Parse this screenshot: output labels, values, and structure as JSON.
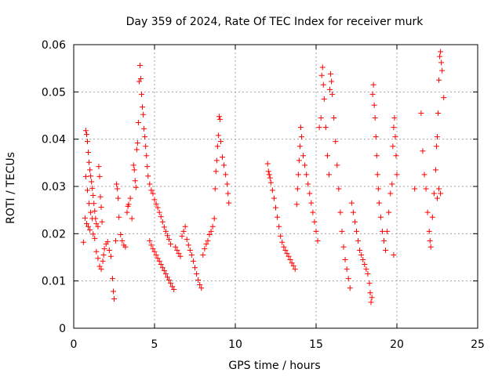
{
  "chart_data": {
    "type": "scatter",
    "title": "Day 359 of 2024, Rate Of TEC Index for receiver murk",
    "xlabel": "GPS time / hours",
    "ylabel": "ROTI / TECUs",
    "xlim": [
      0,
      25
    ],
    "ylim": [
      0,
      0.06
    ],
    "xticks": [
      0,
      5,
      10,
      15,
      20,
      25
    ],
    "yticks": [
      0,
      0.01,
      0.02,
      0.03,
      0.04,
      0.05,
      0.06
    ],
    "xtick_labels": [
      "0",
      "5",
      "10",
      "15",
      "20",
      "25"
    ],
    "ytick_labels": [
      "0",
      "0.01",
      "0.02",
      "0.03",
      "0.04",
      "0.05",
      "0.06"
    ],
    "grid": true,
    "legend": "none",
    "marker": "plus",
    "color": "#ff0000",
    "series": [
      {
        "points": [
          [
            0.6,
            0.0182
          ],
          [
            0.7,
            0.0233
          ],
          [
            0.75,
            0.0418
          ],
          [
            0.8,
            0.041
          ],
          [
            0.85,
            0.0395
          ],
          [
            0.9,
            0.0372
          ],
          [
            0.95,
            0.0351
          ],
          [
            1.0,
            0.0335
          ],
          [
            1.05,
            0.0322
          ],
          [
            1.1,
            0.031
          ],
          [
            1.15,
            0.0296
          ],
          [
            1.2,
            0.0281
          ],
          [
            1.25,
            0.0264
          ],
          [
            1.3,
            0.0248
          ],
          [
            1.35,
            0.0232
          ],
          [
            1.4,
            0.0221
          ],
          [
            1.5,
            0.0215
          ],
          [
            1.55,
            0.0342
          ],
          [
            1.6,
            0.0321
          ],
          [
            1.65,
            0.0278
          ],
          [
            1.7,
            0.0256
          ],
          [
            1.75,
            0.0225
          ],
          [
            0.75,
            0.0321
          ],
          [
            0.85,
            0.0292
          ],
          [
            0.95,
            0.0264
          ],
          [
            1.05,
            0.0245
          ],
          [
            1.15,
            0.0232
          ],
          [
            0.8,
            0.0221
          ],
          [
            0.9,
            0.0215
          ],
          [
            1.0,
            0.0208
          ],
          [
            1.2,
            0.0199
          ],
          [
            1.3,
            0.019
          ],
          [
            1.4,
            0.0162
          ],
          [
            1.5,
            0.0148
          ],
          [
            1.6,
            0.0131
          ],
          [
            1.7,
            0.0125
          ],
          [
            1.8,
            0.0142
          ],
          [
            1.85,
            0.0155
          ],
          [
            1.9,
            0.0168
          ],
          [
            2.0,
            0.0178
          ],
          [
            2.1,
            0.0183
          ],
          [
            2.2,
            0.0165
          ],
          [
            2.3,
            0.0152
          ],
          [
            2.4,
            0.0105
          ],
          [
            2.45,
            0.0078
          ],
          [
            2.5,
            0.0062
          ],
          [
            2.6,
            0.0185
          ],
          [
            2.65,
            0.0305
          ],
          [
            2.7,
            0.0295
          ],
          [
            2.75,
            0.0275
          ],
          [
            2.8,
            0.0235
          ],
          [
            2.9,
            0.0198
          ],
          [
            3.0,
            0.0185
          ],
          [
            3.1,
            0.0176
          ],
          [
            3.2,
            0.0172
          ],
          [
            3.3,
            0.0245
          ],
          [
            3.35,
            0.0258
          ],
          [
            3.4,
            0.0262
          ],
          [
            3.5,
            0.0275
          ],
          [
            3.6,
            0.0232
          ],
          [
            3.7,
            0.0345
          ],
          [
            3.75,
            0.0335
          ],
          [
            3.8,
            0.0312
          ],
          [
            3.85,
            0.0298
          ],
          [
            3.9,
            0.0378
          ],
          [
            3.95,
            0.0392
          ],
          [
            4.0,
            0.0435
          ],
          [
            4.05,
            0.0522
          ],
          [
            4.1,
            0.0556
          ],
          [
            4.15,
            0.0528
          ],
          [
            4.2,
            0.0495
          ],
          [
            4.25,
            0.0468
          ],
          [
            4.3,
            0.0452
          ],
          [
            4.35,
            0.0422
          ],
          [
            4.4,
            0.0405
          ],
          [
            4.45,
            0.0385
          ],
          [
            4.5,
            0.0365
          ],
          [
            4.55,
            0.0342
          ],
          [
            4.6,
            0.0322
          ],
          [
            4.7,
            0.0305
          ],
          [
            4.8,
            0.0292
          ],
          [
            4.9,
            0.0285
          ],
          [
            5.0,
            0.0272
          ],
          [
            5.1,
            0.0263
          ],
          [
            5.2,
            0.0255
          ],
          [
            5.3,
            0.0245
          ],
          [
            5.4,
            0.0236
          ],
          [
            5.5,
            0.0225
          ],
          [
            5.6,
            0.0214
          ],
          [
            5.7,
            0.0205
          ],
          [
            5.8,
            0.0196
          ],
          [
            5.9,
            0.0188
          ],
          [
            6.0,
            0.0178
          ],
          [
            4.7,
            0.0185
          ],
          [
            4.8,
            0.0176
          ],
          [
            4.9,
            0.0168
          ],
          [
            5.0,
            0.0162
          ],
          [
            5.1,
            0.0155
          ],
          [
            5.2,
            0.0148
          ],
          [
            5.3,
            0.0142
          ],
          [
            5.4,
            0.0135
          ],
          [
            5.5,
            0.0128
          ],
          [
            5.6,
            0.0122
          ],
          [
            5.7,
            0.0115
          ],
          [
            5.8,
            0.0108
          ],
          [
            5.9,
            0.0102
          ],
          [
            6.0,
            0.0095
          ],
          [
            6.1,
            0.0088
          ],
          [
            6.2,
            0.0082
          ],
          [
            6.3,
            0.0172
          ],
          [
            6.4,
            0.0165
          ],
          [
            6.5,
            0.0158
          ],
          [
            6.6,
            0.0152
          ],
          [
            6.7,
            0.0195
          ],
          [
            6.8,
            0.0205
          ],
          [
            6.9,
            0.0215
          ],
          [
            7.0,
            0.0188
          ],
          [
            7.1,
            0.0176
          ],
          [
            7.2,
            0.0165
          ],
          [
            7.3,
            0.0155
          ],
          [
            7.4,
            0.0142
          ],
          [
            7.5,
            0.0128
          ],
          [
            7.6,
            0.0115
          ],
          [
            7.7,
            0.0102
          ],
          [
            7.8,
            0.0092
          ],
          [
            7.9,
            0.0085
          ],
          [
            8.0,
            0.0155
          ],
          [
            8.1,
            0.0168
          ],
          [
            8.2,
            0.0178
          ],
          [
            8.3,
            0.0185
          ],
          [
            8.4,
            0.0198
          ],
          [
            8.5,
            0.0205
          ],
          [
            8.6,
            0.0215
          ],
          [
            8.7,
            0.0232
          ],
          [
            8.75,
            0.0295
          ],
          [
            8.8,
            0.0332
          ],
          [
            8.85,
            0.0355
          ],
          [
            8.9,
            0.0385
          ],
          [
            8.95,
            0.0408
          ],
          [
            9.0,
            0.0448
          ],
          [
            9.05,
            0.0442
          ],
          [
            9.1,
            0.0395
          ],
          [
            9.2,
            0.0362
          ],
          [
            9.3,
            0.0345
          ],
          [
            9.4,
            0.0325
          ],
          [
            9.5,
            0.0305
          ],
          [
            9.55,
            0.0285
          ],
          [
            9.6,
            0.0265
          ],
          [
            12.0,
            0.0348
          ],
          [
            12.05,
            0.0332
          ],
          [
            12.1,
            0.0325
          ],
          [
            12.15,
            0.0318
          ],
          [
            12.2,
            0.0308
          ],
          [
            12.3,
            0.0292
          ],
          [
            12.4,
            0.0275
          ],
          [
            12.5,
            0.0255
          ],
          [
            12.6,
            0.0235
          ],
          [
            12.7,
            0.0215
          ],
          [
            12.8,
            0.0195
          ],
          [
            12.9,
            0.0182
          ],
          [
            13.0,
            0.0172
          ],
          [
            13.1,
            0.0165
          ],
          [
            13.2,
            0.0158
          ],
          [
            13.3,
            0.0152
          ],
          [
            13.4,
            0.0145
          ],
          [
            13.5,
            0.0138
          ],
          [
            13.6,
            0.0132
          ],
          [
            13.7,
            0.0125
          ],
          [
            13.8,
            0.0262
          ],
          [
            13.85,
            0.0295
          ],
          [
            13.9,
            0.0325
          ],
          [
            13.95,
            0.0355
          ],
          [
            14.0,
            0.0385
          ],
          [
            14.05,
            0.0425
          ],
          [
            14.1,
            0.0405
          ],
          [
            14.2,
            0.0365
          ],
          [
            14.3,
            0.0345
          ],
          [
            14.4,
            0.0325
          ],
          [
            14.5,
            0.0305
          ],
          [
            14.6,
            0.0285
          ],
          [
            14.7,
            0.0265
          ],
          [
            14.8,
            0.0245
          ],
          [
            14.9,
            0.0225
          ],
          [
            15.0,
            0.0205
          ],
          [
            15.1,
            0.0185
          ],
          [
            15.2,
            0.0425
          ],
          [
            15.3,
            0.0445
          ],
          [
            15.35,
            0.0535
          ],
          [
            15.4,
            0.0552
          ],
          [
            15.45,
            0.0515
          ],
          [
            15.5,
            0.0485
          ],
          [
            15.6,
            0.0425
          ],
          [
            15.7,
            0.0365
          ],
          [
            15.8,
            0.0325
          ],
          [
            15.85,
            0.0505
          ],
          [
            15.9,
            0.0538
          ],
          [
            15.95,
            0.0522
          ],
          [
            16.0,
            0.0495
          ],
          [
            16.1,
            0.0445
          ],
          [
            16.2,
            0.0395
          ],
          [
            16.3,
            0.0345
          ],
          [
            16.4,
            0.0295
          ],
          [
            16.5,
            0.0245
          ],
          [
            16.6,
            0.0205
          ],
          [
            16.7,
            0.0172
          ],
          [
            16.8,
            0.0145
          ],
          [
            16.9,
            0.0125
          ],
          [
            17.0,
            0.0105
          ],
          [
            17.1,
            0.0085
          ],
          [
            17.2,
            0.0265
          ],
          [
            17.3,
            0.0245
          ],
          [
            17.4,
            0.0225
          ],
          [
            17.5,
            0.0205
          ],
          [
            17.6,
            0.0185
          ],
          [
            17.7,
            0.0165
          ],
          [
            17.8,
            0.0155
          ],
          [
            17.9,
            0.0145
          ],
          [
            18.0,
            0.0135
          ],
          [
            18.1,
            0.0125
          ],
          [
            18.2,
            0.0115
          ],
          [
            18.3,
            0.0095
          ],
          [
            18.35,
            0.0075
          ],
          [
            18.4,
            0.0055
          ],
          [
            18.45,
            0.0065
          ],
          [
            18.5,
            0.0495
          ],
          [
            18.55,
            0.0515
          ],
          [
            18.6,
            0.0472
          ],
          [
            18.65,
            0.0445
          ],
          [
            18.7,
            0.0405
          ],
          [
            18.75,
            0.0365
          ],
          [
            18.8,
            0.0325
          ],
          [
            18.85,
            0.0295
          ],
          [
            18.9,
            0.0265
          ],
          [
            19.0,
            0.0235
          ],
          [
            19.1,
            0.0205
          ],
          [
            19.2,
            0.0185
          ],
          [
            19.3,
            0.0165
          ],
          [
            19.4,
            0.0205
          ],
          [
            19.5,
            0.0245
          ],
          [
            19.6,
            0.0285
          ],
          [
            19.7,
            0.0305
          ],
          [
            19.75,
            0.0385
          ],
          [
            19.8,
            0.0425
          ],
          [
            19.85,
            0.0445
          ],
          [
            19.9,
            0.0405
          ],
          [
            19.95,
            0.0365
          ],
          [
            20.0,
            0.0325
          ],
          [
            19.8,
            0.0155
          ],
          [
            21.1,
            0.0295
          ],
          [
            21.5,
            0.0455
          ],
          [
            21.6,
            0.0375
          ],
          [
            21.7,
            0.0325
          ],
          [
            21.8,
            0.0295
          ],
          [
            21.9,
            0.0245
          ],
          [
            22.0,
            0.0205
          ],
          [
            22.05,
            0.0185
          ],
          [
            22.1,
            0.0172
          ],
          [
            22.2,
            0.0235
          ],
          [
            22.3,
            0.0285
          ],
          [
            22.4,
            0.0335
          ],
          [
            22.45,
            0.0385
          ],
          [
            22.5,
            0.0405
          ],
          [
            22.55,
            0.0455
          ],
          [
            22.6,
            0.0525
          ],
          [
            22.65,
            0.0575
          ],
          [
            22.7,
            0.0585
          ],
          [
            22.75,
            0.0562
          ],
          [
            22.8,
            0.0545
          ],
          [
            22.9,
            0.0488
          ],
          [
            22.6,
            0.0295
          ],
          [
            22.7,
            0.0285
          ],
          [
            22.5,
            0.0275
          ]
        ]
      }
    ]
  }
}
